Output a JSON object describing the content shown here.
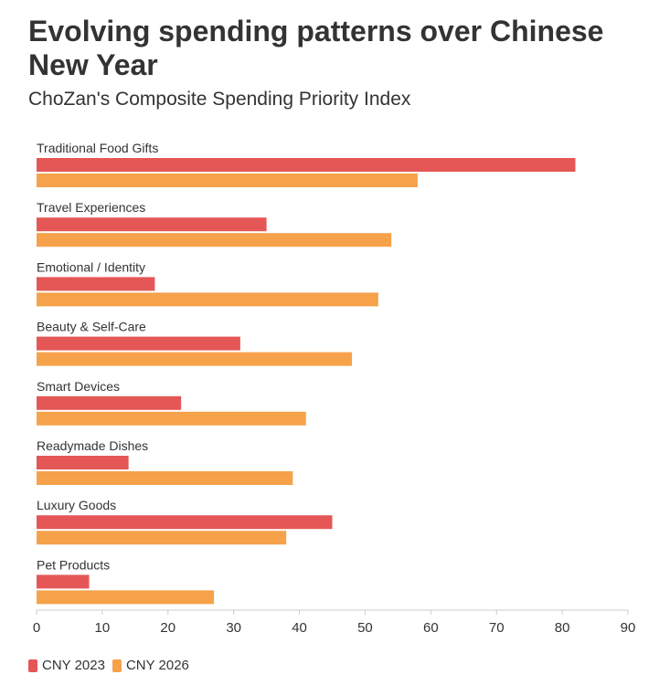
{
  "title": "Evolving spending patterns over Chinese New Year",
  "subtitle": "ChoZan's Composite Spending Priority Index",
  "colors": {
    "cny2023": "#e45756",
    "cny2026": "#f5a24a",
    "axis": "#cccccc",
    "text": "#333333"
  },
  "chart_data": {
    "type": "bar",
    "orientation": "horizontal",
    "title": "Evolving spending patterns over Chinese New Year",
    "subtitle": "ChoZan's Composite Spending Priority Index",
    "xlabel": "",
    "ylabel": "",
    "xlim": [
      0,
      90
    ],
    "xticks": [
      0,
      10,
      20,
      30,
      40,
      50,
      60,
      70,
      80,
      90
    ],
    "grid": false,
    "legend_position": "bottom-left",
    "categories": [
      "Traditional Food Gifts",
      "Travel Experiences",
      "Emotional / Identity",
      "Beauty & Self-Care",
      "Smart Devices",
      "Readymade Dishes",
      "Luxury Goods",
      "Pet Products"
    ],
    "series": [
      {
        "name": "CNY 2023",
        "values": [
          82,
          35,
          18,
          31,
          22,
          14,
          45,
          8
        ]
      },
      {
        "name": "CNY 2026",
        "values": [
          58,
          54,
          52,
          48,
          41,
          39,
          38,
          27
        ]
      }
    ]
  }
}
